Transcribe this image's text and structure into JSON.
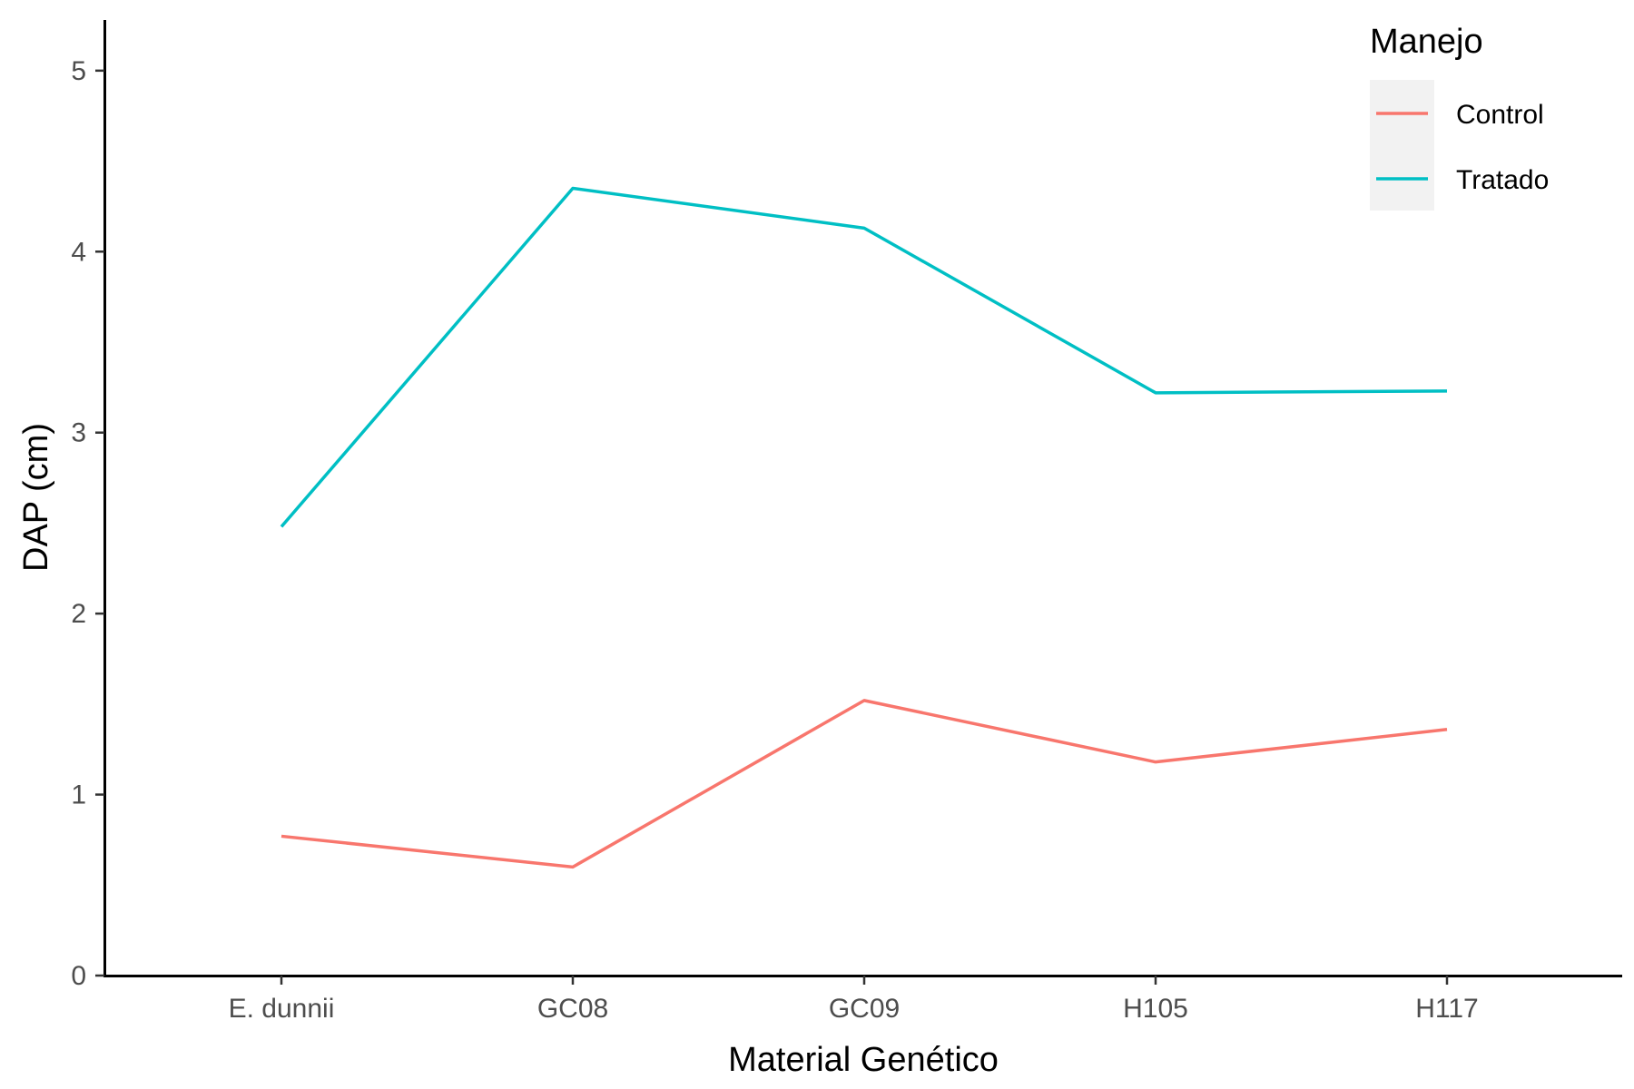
{
  "chart_data": {
    "type": "line",
    "categories": [
      "E. dunnii",
      "GC08",
      "GC09",
      "H105",
      "H117"
    ],
    "series": [
      {
        "name": "Control",
        "color": "#F8766D",
        "values": [
          0.77,
          0.6,
          1.52,
          1.18,
          1.36
        ]
      },
      {
        "name": "Tratado",
        "color": "#00BFC4",
        "values": [
          2.48,
          4.35,
          4.13,
          3.22,
          3.23
        ]
      }
    ],
    "xlabel": "Material Genético",
    "ylabel": "DAP (cm)",
    "ylim": [
      0,
      5.28
    ],
    "yticks": [
      "0",
      "1",
      "2",
      "3",
      "4",
      "5"
    ],
    "legend": {
      "title": "Manejo",
      "placement": "top-right"
    },
    "grid": false
  }
}
